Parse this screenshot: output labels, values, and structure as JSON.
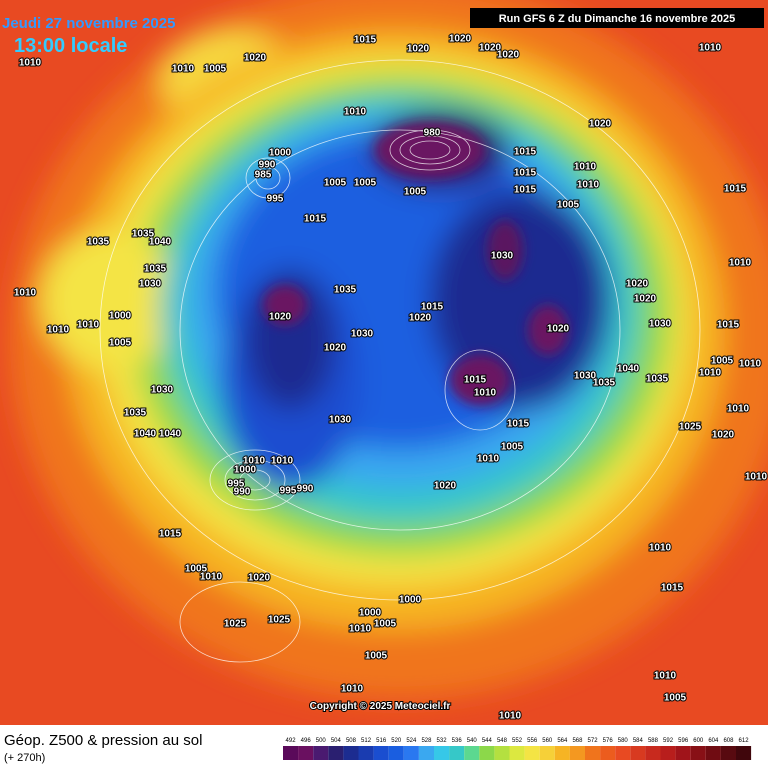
{
  "header": {
    "date": "Jeudi 27 novembre 2025",
    "local_time": "13:00 locale",
    "run": "Run GFS 6 Z du Dimanche 16 novembre 2025"
  },
  "copyright": "Copyright © 2025 Meteociel.fr",
  "footer": {
    "title": "Géop. Z500 & pression au sol",
    "lead": "(+ 270h)"
  },
  "scale": {
    "values": [
      492,
      496,
      500,
      504,
      508,
      512,
      516,
      520,
      524,
      528,
      532,
      536,
      540,
      544,
      548,
      552,
      556,
      560,
      564,
      568,
      572,
      576,
      580,
      584,
      588,
      592,
      596,
      600,
      604,
      608,
      612
    ],
    "colors": [
      "#5a0a5a",
      "#6a1060",
      "#4a1a70",
      "#2a1f70",
      "#1c2c90",
      "#1a3cb0",
      "#1a4ed0",
      "#1a5ee0",
      "#2a78f0",
      "#3aa8f0",
      "#36c8e8",
      "#36c8c8",
      "#5cd890",
      "#8cd84a",
      "#b4e040",
      "#dce840",
      "#f4e444",
      "#f6d038",
      "#f6b424",
      "#f49820",
      "#f0741c",
      "#ec5c1e",
      "#e84a22",
      "#d83a20",
      "#c82a1e",
      "#b81e1c",
      "#a0141a",
      "#881016",
      "#700c12",
      "#580a10",
      "#40060c"
    ]
  },
  "isobar_labels": [
    "1010",
    "1010",
    "1005",
    "1020",
    "1015",
    "1020",
    "1020",
    "1020",
    "1020",
    "1010",
    "1010",
    "980",
    "1000",
    "990",
    "985",
    "995",
    "1005",
    "1005",
    "1005",
    "1015",
    "1010",
    "1015",
    "1010",
    "1015",
    "1005",
    "1015",
    "1020",
    "1015",
    "1035",
    "1035",
    "1040",
    "1035",
    "1030",
    "1010",
    "1030",
    "1035",
    "1015",
    "1020",
    "1020",
    "1020",
    "1020",
    "1020",
    "1010",
    "1030",
    "1030",
    "1020",
    "1000",
    "1010",
    "1010",
    "1005",
    "1030",
    "1035",
    "1040",
    "1040",
    "1030",
    "1015",
    "1010",
    "1015",
    "1005",
    "1010",
    "1030",
    "1035",
    "1040",
    "1035",
    "1005",
    "1010",
    "1010",
    "1015",
    "1010",
    "1025",
    "1020",
    "1010",
    "1010",
    "1010",
    "1000",
    "995",
    "990",
    "995",
    "990",
    "1020",
    "1015",
    "1005",
    "1010",
    "1020",
    "1025",
    "1025",
    "1000",
    "1000",
    "1010",
    "1005",
    "1005",
    "1010",
    "1015",
    "1010",
    "1005",
    "1010",
    "1010"
  ]
}
